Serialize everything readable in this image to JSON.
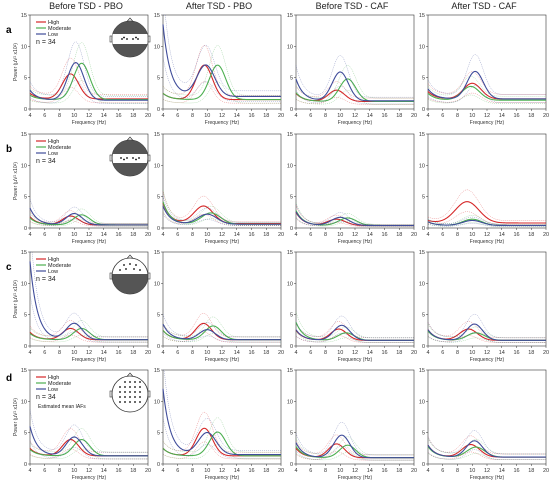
{
  "figure": {
    "column_titles": [
      "Before TSD - PBO",
      "After TSD - PBO",
      "Before TSD - CAF",
      "After TSD - CAF"
    ],
    "row_labels": [
      "a",
      "b",
      "c",
      "d"
    ]
  },
  "colors": {
    "High": "#d62728",
    "Moderate": "#4caf50",
    "Low": "#3f4c9a",
    "head_fill": "#555555"
  },
  "chart_data": {
    "type": "line",
    "panel_grid": {
      "rows": 4,
      "cols": 4
    },
    "xlabel": "Frequency (Hz)",
    "ylabel": "Power (µV² x10²)",
    "xlim": [
      4,
      20
    ],
    "ylim": [
      0,
      15
    ],
    "xticks": [
      4,
      6,
      8,
      10,
      12,
      14,
      16,
      18,
      20
    ],
    "yticks": [
      0,
      5,
      10,
      15
    ],
    "legend": {
      "entries": [
        "High",
        "Moderate",
        "Low"
      ],
      "placement": "top-left"
    },
    "sample_size": "n = 34",
    "annotation_d": "Estimated mean IAFs",
    "scalp_regions": [
      "whole-scalp",
      "central",
      "frontal",
      "all-electrodes"
    ],
    "panels": [
      {
        "row": "a",
        "col": 0,
        "series": [
          {
            "name": "High",
            "offset": 1.6,
            "peak_f": 9.5,
            "peak_h": 4.0,
            "width": 1.1,
            "low_f_h": 2.5
          },
          {
            "name": "Moderate",
            "offset": 1.5,
            "peak_f": 11.0,
            "peak_h": 5.8,
            "width": 1.1,
            "low_f_h": 2.2
          },
          {
            "name": "Low",
            "offset": 1.4,
            "peak_f": 10.2,
            "peak_h": 6.0,
            "width": 1.1,
            "low_f_h": 3.0
          }
        ]
      },
      {
        "row": "a",
        "col": 1,
        "series": [
          {
            "name": "High",
            "offset": 1.5,
            "peak_f": 9.6,
            "peak_h": 5.5,
            "width": 1.1,
            "low_f_h": 2.5
          },
          {
            "name": "Moderate",
            "offset": 1.5,
            "peak_f": 11.4,
            "peak_h": 5.5,
            "width": 1.1,
            "low_f_h": 2.5
          },
          {
            "name": "Low",
            "offset": 2.0,
            "peak_f": 9.8,
            "peak_h": 5.0,
            "width": 1.2,
            "low_f_h": 13.5
          }
        ]
      },
      {
        "row": "a",
        "col": 2,
        "series": [
          {
            "name": "High",
            "offset": 1.2,
            "peak_f": 9.5,
            "peak_h": 1.8,
            "width": 1.1,
            "low_f_h": 2.5
          },
          {
            "name": "Moderate",
            "offset": 1.2,
            "peak_f": 11.0,
            "peak_h": 3.6,
            "width": 1.1,
            "low_f_h": 2.6
          },
          {
            "name": "Low",
            "offset": 1.3,
            "peak_f": 10.0,
            "peak_h": 4.6,
            "width": 1.1,
            "low_f_h": 4.8
          }
        ]
      },
      {
        "row": "a",
        "col": 3,
        "series": [
          {
            "name": "High",
            "offset": 1.6,
            "peak_f": 10.0,
            "peak_h": 2.5,
            "width": 1.2,
            "low_f_h": 2.8
          },
          {
            "name": "Moderate",
            "offset": 1.4,
            "peak_f": 9.8,
            "peak_h": 2.2,
            "width": 1.2,
            "low_f_h": 2.5
          },
          {
            "name": "Low",
            "offset": 1.6,
            "peak_f": 10.4,
            "peak_h": 4.4,
            "width": 1.1,
            "low_f_h": 3.2
          }
        ]
      },
      {
        "row": "b",
        "col": 0,
        "series": [
          {
            "name": "High",
            "offset": 0.5,
            "peak_f": 9.5,
            "peak_h": 1.4,
            "width": 1.1,
            "low_f_h": 1.8
          },
          {
            "name": "Moderate",
            "offset": 0.5,
            "peak_f": 11.0,
            "peak_h": 1.6,
            "width": 1.1,
            "low_f_h": 1.6
          },
          {
            "name": "Low",
            "offset": 0.5,
            "peak_f": 10.0,
            "peak_h": 1.8,
            "width": 1.1,
            "low_f_h": 3.2
          }
        ]
      },
      {
        "row": "b",
        "col": 1,
        "series": [
          {
            "name": "High",
            "offset": 0.7,
            "peak_f": 9.5,
            "peak_h": 2.8,
            "width": 1.3,
            "low_f_h": 4.0
          },
          {
            "name": "Moderate",
            "offset": 0.6,
            "peak_f": 10.5,
            "peak_h": 1.8,
            "width": 1.3,
            "low_f_h": 4.2
          },
          {
            "name": "Low",
            "offset": 0.6,
            "peak_f": 10.0,
            "peak_h": 1.6,
            "width": 1.3,
            "low_f_h": 3.5
          }
        ]
      },
      {
        "row": "b",
        "col": 2,
        "series": [
          {
            "name": "High",
            "offset": 0.4,
            "peak_f": 9.5,
            "peak_h": 1.0,
            "width": 1.2,
            "low_f_h": 2.5
          },
          {
            "name": "Moderate",
            "offset": 0.4,
            "peak_f": 11.0,
            "peak_h": 1.2,
            "width": 1.2,
            "low_f_h": 2.8
          },
          {
            "name": "Low",
            "offset": 0.4,
            "peak_f": 10.0,
            "peak_h": 1.3,
            "width": 1.2,
            "low_f_h": 2.6
          }
        ]
      },
      {
        "row": "b",
        "col": 3,
        "series": [
          {
            "name": "High",
            "offset": 0.8,
            "peak_f": 9.3,
            "peak_h": 3.4,
            "width": 1.6,
            "low_f_h": 1.2
          },
          {
            "name": "Moderate",
            "offset": 0.4,
            "peak_f": 10.0,
            "peak_h": 1.0,
            "width": 1.3,
            "low_f_h": 1.0
          },
          {
            "name": "Low",
            "offset": 0.4,
            "peak_f": 10.0,
            "peak_h": 0.8,
            "width": 1.3,
            "low_f_h": 1.0
          }
        ]
      },
      {
        "row": "c",
        "col": 0,
        "series": [
          {
            "name": "High",
            "offset": 1.0,
            "peak_f": 9.5,
            "peak_h": 1.8,
            "width": 1.1,
            "low_f_h": 2.2
          },
          {
            "name": "Moderate",
            "offset": 1.0,
            "peak_f": 11.0,
            "peak_h": 1.8,
            "width": 1.1,
            "low_f_h": 2.0
          },
          {
            "name": "Low",
            "offset": 1.0,
            "peak_f": 10.0,
            "peak_h": 2.6,
            "width": 1.1,
            "low_f_h": 13.5
          }
        ]
      },
      {
        "row": "c",
        "col": 1,
        "series": [
          {
            "name": "High",
            "offset": 1.0,
            "peak_f": 9.5,
            "peak_h": 2.6,
            "width": 1.1,
            "low_f_h": 2.5
          },
          {
            "name": "Moderate",
            "offset": 1.0,
            "peak_f": 10.8,
            "peak_h": 2.2,
            "width": 1.1,
            "low_f_h": 2.5
          },
          {
            "name": "Low",
            "offset": 1.0,
            "peak_f": 10.0,
            "peak_h": 1.6,
            "width": 1.1,
            "low_f_h": 3.5
          }
        ]
      },
      {
        "row": "c",
        "col": 2,
        "series": [
          {
            "name": "High",
            "offset": 0.9,
            "peak_f": 9.8,
            "peak_h": 1.8,
            "width": 1.1,
            "low_f_h": 2.5
          },
          {
            "name": "Moderate",
            "offset": 0.9,
            "peak_f": 10.8,
            "peak_h": 1.2,
            "width": 1.1,
            "low_f_h": 3.8
          },
          {
            "name": "Low",
            "offset": 0.9,
            "peak_f": 10.2,
            "peak_h": 2.4,
            "width": 1.1,
            "low_f_h": 2.6
          }
        ]
      },
      {
        "row": "c",
        "col": 3,
        "series": [
          {
            "name": "High",
            "offset": 0.9,
            "peak_f": 9.5,
            "peak_h": 1.8,
            "width": 1.2,
            "low_f_h": 2.6
          },
          {
            "name": "Moderate",
            "offset": 0.9,
            "peak_f": 10.5,
            "peak_h": 1.2,
            "width": 1.2,
            "low_f_h": 2.4
          },
          {
            "name": "Low",
            "offset": 0.9,
            "peak_f": 10.3,
            "peak_h": 2.6,
            "width": 1.1,
            "low_f_h": 2.6
          }
        ]
      },
      {
        "row": "d",
        "col": 0,
        "series": [
          {
            "name": "High",
            "offset": 1.3,
            "peak_f": 9.5,
            "peak_h": 2.6,
            "width": 1.1,
            "low_f_h": 2.5
          },
          {
            "name": "Moderate",
            "offset": 1.3,
            "peak_f": 11.0,
            "peak_h": 2.6,
            "width": 1.1,
            "low_f_h": 2.3
          },
          {
            "name": "Low",
            "offset": 1.3,
            "peak_f": 10.0,
            "peak_h": 3.0,
            "width": 1.1,
            "low_f_h": 6.0
          }
        ]
      },
      {
        "row": "d",
        "col": 1,
        "series": [
          {
            "name": "High",
            "offset": 1.3,
            "peak_f": 9.6,
            "peak_h": 4.4,
            "width": 1.1,
            "low_f_h": 2.5
          },
          {
            "name": "Moderate",
            "offset": 1.3,
            "peak_f": 11.4,
            "peak_h": 3.8,
            "width": 1.1,
            "low_f_h": 2.5
          },
          {
            "name": "Low",
            "offset": 1.5,
            "peak_f": 10.0,
            "peak_h": 3.5,
            "width": 1.2,
            "low_f_h": 12.0
          }
        ]
      },
      {
        "row": "d",
        "col": 2,
        "series": [
          {
            "name": "High",
            "offset": 1.0,
            "peak_f": 9.5,
            "peak_h": 2.2,
            "width": 1.1,
            "low_f_h": 2.5
          },
          {
            "name": "Moderate",
            "offset": 1.0,
            "peak_f": 11.0,
            "peak_h": 2.0,
            "width": 1.1,
            "low_f_h": 2.8
          },
          {
            "name": "Low",
            "offset": 1.0,
            "peak_f": 10.2,
            "peak_h": 3.6,
            "width": 1.1,
            "low_f_h": 3.4
          }
        ]
      },
      {
        "row": "d",
        "col": 3,
        "series": [
          {
            "name": "High",
            "offset": 1.1,
            "peak_f": 9.8,
            "peak_h": 2.0,
            "width": 1.2,
            "low_f_h": 3.0
          },
          {
            "name": "Moderate",
            "offset": 1.1,
            "peak_f": 10.5,
            "peak_h": 1.6,
            "width": 1.2,
            "low_f_h": 2.8
          },
          {
            "name": "Low",
            "offset": 1.1,
            "peak_f": 10.3,
            "peak_h": 2.6,
            "width": 1.1,
            "low_f_h": 3.0
          }
        ]
      }
    ]
  }
}
